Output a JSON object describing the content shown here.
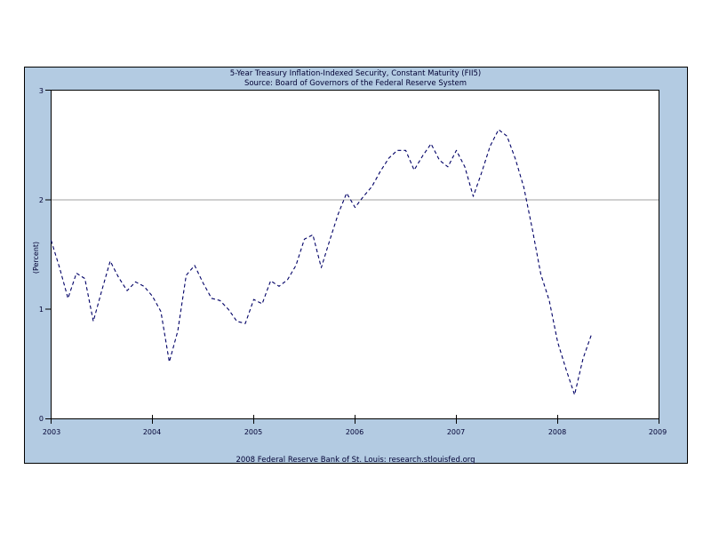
{
  "title": {
    "line1": "5-Year Treasury Inflation-Indexed Security, Constant Maturity (FII5)",
    "line2": "Source: Board of Governors of the Federal Reserve System"
  },
  "footer": "2008 Federal Reserve Bank of St. Louis: research.stlouisfed.org",
  "colors": {
    "panel_background": "#b3cbe2",
    "plot_background": "#ffffff",
    "line": "#000066",
    "gridline": "#a0a0a0",
    "border": "#000000",
    "text": "#000033"
  },
  "chart_data": {
    "type": "line",
    "title": "5-Year Treasury Inflation-Indexed Security, Constant Maturity (FII5)",
    "subtitle": "Source: Board of Governors of the Federal Reserve System",
    "xlabel": "",
    "ylabel": "(Percent)",
    "xlim": [
      2003,
      2009
    ],
    "ylim": [
      0,
      3
    ],
    "x_ticks": [
      "2003",
      "2004",
      "2005",
      "2006",
      "2007",
      "2008",
      "2009"
    ],
    "y_ticks": [
      "0",
      "1",
      "2",
      "3"
    ],
    "gridlines_y": [
      2
    ],
    "grid": "single-horizontal-line-at-2",
    "legend": "none",
    "line_style": "dashed",
    "frequency": "monthly",
    "series": [
      {
        "name": "5-Year Treasury Inflation-Indexed Security, Constant Maturity (FII5)",
        "x": [
          2003.0,
          2003.083,
          2003.167,
          2003.25,
          2003.333,
          2003.417,
          2003.5,
          2003.583,
          2003.667,
          2003.75,
          2003.833,
          2003.917,
          2004.0,
          2004.083,
          2004.167,
          2004.25,
          2004.333,
          2004.417,
          2004.5,
          2004.583,
          2004.667,
          2004.75,
          2004.833,
          2004.917,
          2005.0,
          2005.083,
          2005.167,
          2005.25,
          2005.333,
          2005.417,
          2005.5,
          2005.583,
          2005.667,
          2005.75,
          2005.833,
          2005.917,
          2006.0,
          2006.083,
          2006.167,
          2006.25,
          2006.333,
          2006.417,
          2006.5,
          2006.583,
          2006.667,
          2006.75,
          2006.833,
          2006.917,
          2007.0,
          2007.083,
          2007.167,
          2007.25,
          2007.333,
          2007.417,
          2007.5,
          2007.583,
          2007.667,
          2007.75,
          2007.833,
          2007.917,
          2008.0,
          2008.083,
          2008.167,
          2008.25,
          2008.333
        ],
        "values": [
          1.63,
          1.38,
          1.1,
          1.33,
          1.28,
          0.89,
          1.17,
          1.44,
          1.29,
          1.17,
          1.25,
          1.21,
          1.12,
          0.98,
          0.52,
          0.8,
          1.31,
          1.4,
          1.24,
          1.1,
          1.08,
          1.0,
          0.89,
          0.87,
          1.09,
          1.05,
          1.26,
          1.21,
          1.27,
          1.4,
          1.64,
          1.68,
          1.38,
          1.63,
          1.87,
          2.06,
          1.93,
          2.03,
          2.12,
          2.26,
          2.38,
          2.45,
          2.45,
          2.27,
          2.4,
          2.51,
          2.36,
          2.3,
          2.45,
          2.3,
          2.03,
          2.25,
          2.49,
          2.64,
          2.58,
          2.37,
          2.11,
          1.73,
          1.32,
          1.08,
          0.7,
          0.45,
          0.22,
          0.55,
          0.77
        ]
      }
    ]
  }
}
